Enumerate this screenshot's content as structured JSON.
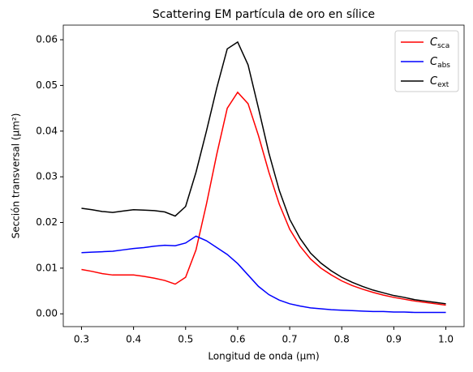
{
  "chart_data": {
    "type": "line",
    "title": "Scattering EM partícula de oro en sílice",
    "xlabel": "Longitud de onda (μm)",
    "ylabel": "Sección transversal (μm²)",
    "x": [
      0.3,
      0.32,
      0.34,
      0.36,
      0.38,
      0.4,
      0.42,
      0.44,
      0.46,
      0.48,
      0.5,
      0.52,
      0.54,
      0.56,
      0.58,
      0.6,
      0.62,
      0.64,
      0.66,
      0.68,
      0.7,
      0.72,
      0.74,
      0.76,
      0.78,
      0.8,
      0.82,
      0.84,
      0.86,
      0.88,
      0.9,
      0.92,
      0.94,
      0.96,
      0.98,
      1.0
    ],
    "series": [
      {
        "name": "C",
        "subscript": "sca",
        "color": "#ff0000",
        "values": [
          0.0097,
          0.0093,
          0.0088,
          0.0085,
          0.0085,
          0.0085,
          0.0082,
          0.0078,
          0.0073,
          0.0065,
          0.008,
          0.014,
          0.024,
          0.035,
          0.045,
          0.0485,
          0.046,
          0.039,
          0.031,
          0.024,
          0.0185,
          0.0148,
          0.012,
          0.01,
          0.0085,
          0.0072,
          0.0062,
          0.0054,
          0.0047,
          0.0041,
          0.0036,
          0.0032,
          0.0028,
          0.0025,
          0.0022,
          0.0019
        ]
      },
      {
        "name": "C",
        "subscript": "abs",
        "color": "#0000ff",
        "values": [
          0.0134,
          0.0135,
          0.0136,
          0.0137,
          0.014,
          0.0143,
          0.0145,
          0.0148,
          0.015,
          0.0149,
          0.0155,
          0.017,
          0.016,
          0.0145,
          0.013,
          0.011,
          0.0085,
          0.006,
          0.0042,
          0.003,
          0.0022,
          0.0017,
          0.0013,
          0.0011,
          0.0009,
          0.0008,
          0.0007,
          0.0006,
          0.0005,
          0.0005,
          0.0004,
          0.0004,
          0.0003,
          0.0003,
          0.0003,
          0.0003
        ]
      },
      {
        "name": "C",
        "subscript": "ext",
        "color": "#000000",
        "values": [
          0.0231,
          0.0228,
          0.0224,
          0.0222,
          0.0225,
          0.0228,
          0.0227,
          0.0226,
          0.0223,
          0.0214,
          0.0235,
          0.031,
          0.04,
          0.0495,
          0.058,
          0.0595,
          0.0545,
          0.045,
          0.0352,
          0.027,
          0.0207,
          0.0165,
          0.0133,
          0.0111,
          0.0094,
          0.008,
          0.0069,
          0.006,
          0.0052,
          0.0046,
          0.004,
          0.0036,
          0.0031,
          0.0028,
          0.0025,
          0.0022
        ]
      }
    ],
    "xlim": [
      0.265,
      1.035
    ],
    "xticks": [
      0.3,
      0.4,
      0.5,
      0.6,
      0.7,
      0.8,
      0.9,
      {
        "value": 1,
        "label": "1.0"
      }
    ],
    "ylim": [
      -0.0028,
      0.0632
    ],
    "yticks": [
      {
        "value": 0,
        "label": "0.00"
      },
      {
        "value": 0.01,
        "label": "0.01"
      },
      {
        "value": 0.02,
        "label": "0.02"
      },
      {
        "value": 0.03,
        "label": "0.03"
      },
      {
        "value": 0.04,
        "label": "0.04"
      },
      {
        "value": 0.05,
        "label": "0.05"
      },
      {
        "value": 0.06,
        "label": "0.06"
      }
    ],
    "grid": false,
    "legend": "upper right"
  }
}
